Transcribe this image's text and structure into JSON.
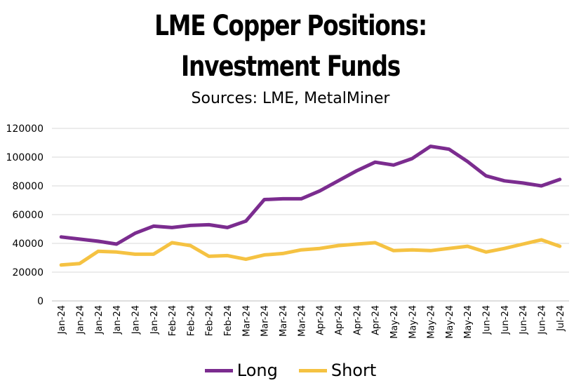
{
  "chart_data": {
    "type": "line",
    "title_line1": "LME Copper Positions:",
    "title_line2": "Investment Funds",
    "subtitle": "Sources: LME, MetalMiner",
    "ylim": [
      0,
      120000
    ],
    "yticks": [
      0,
      20000,
      40000,
      60000,
      80000,
      100000,
      120000
    ],
    "grid": true,
    "legend_position": "bottom",
    "categories": [
      "Jan-24",
      "Jan-24",
      "Jan-24",
      "Jan-24",
      "Jan-24",
      "Jan-24",
      "Feb-24",
      "Feb-24",
      "Feb-24",
      "Feb-24",
      "Mar-24",
      "Mar-24",
      "Mar-24",
      "Mar-24",
      "Apr-24",
      "Apr-24",
      "Apr-24",
      "Apr-24",
      "May-24",
      "May-24",
      "May-24",
      "May-24",
      "May-24",
      "Jun-24",
      "Jun-24",
      "Jun-24",
      "Jun-24",
      "Jul-24"
    ],
    "series": [
      {
        "name": "Long",
        "color": "#7B2C8F",
        "values": [
          44500,
          43000,
          41500,
          39500,
          47000,
          52000,
          51000,
          52500,
          53000,
          51000,
          55500,
          70500,
          71000,
          71000,
          76500,
          83500,
          90500,
          96500,
          94500,
          99000,
          107500,
          105500,
          97000,
          87000,
          83500,
          82000,
          80000,
          84500
        ]
      },
      {
        "name": "Short",
        "color": "#F5C242",
        "values": [
          25000,
          26000,
          34500,
          34000,
          32500,
          32500,
          40500,
          38500,
          31000,
          31500,
          29000,
          32000,
          33000,
          35500,
          36500,
          38500,
          39500,
          40500,
          35000,
          35500,
          35000,
          36500,
          38000,
          34000,
          36500,
          39500,
          42500,
          38000
        ]
      }
    ]
  }
}
